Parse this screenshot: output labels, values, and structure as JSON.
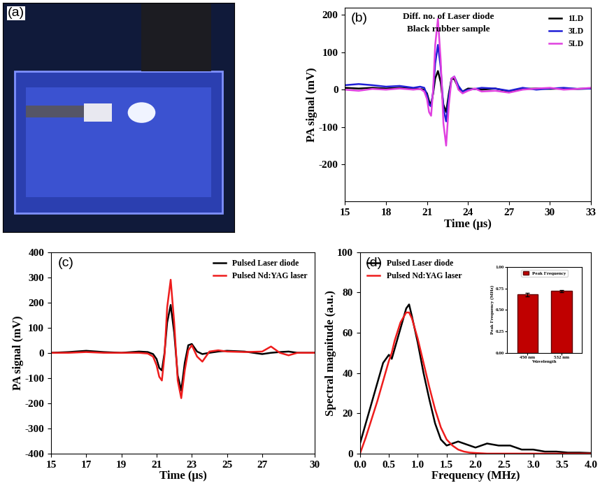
{
  "chart_data": [
    {
      "type": "image",
      "annotations": [
        "(a)"
      ]
    },
    {
      "type": "line",
      "annotations": [
        "(b)",
        "Diff. no. of Laser diode",
        "Black rubber sample"
      ],
      "x_label": "Time (μs)",
      "y_label": "PA signal (mV)",
      "x": [
        15,
        16,
        17,
        18,
        19,
        20,
        20.5,
        20.8,
        21.0,
        21.15,
        21.3,
        21.45,
        21.6,
        21.8,
        22.0,
        22.2,
        22.4,
        22.6,
        22.8,
        23.0,
        23.3,
        23.6,
        24,
        24.5,
        25,
        26,
        27,
        28,
        29,
        30,
        31,
        32,
        33
      ],
      "series": [
        {
          "name": "1LD",
          "color": "#000000",
          "values": [
            5,
            3,
            5,
            3,
            5,
            3,
            2,
            0,
            -10,
            -30,
            -40,
            -10,
            30,
            50,
            20,
            -40,
            -60,
            -10,
            30,
            28,
            5,
            -5,
            3,
            2,
            0,
            3,
            -5,
            2,
            3,
            2,
            3,
            2,
            3
          ]
        },
        {
          "name": "3LD",
          "color": "#1f1fd6",
          "values": [
            12,
            15,
            12,
            8,
            10,
            5,
            8,
            5,
            -15,
            -40,
            -45,
            -5,
            70,
            120,
            60,
            -50,
            -85,
            -20,
            30,
            35,
            10,
            -5,
            0,
            2,
            5,
            3,
            -3,
            5,
            0,
            3,
            5,
            2,
            3
          ]
        },
        {
          "name": "5LD",
          "color": "#e040e0",
          "values": [
            0,
            -3,
            2,
            0,
            3,
            0,
            2,
            -5,
            -25,
            -60,
            -70,
            0,
            120,
            190,
            80,
            -90,
            -150,
            -40,
            30,
            35,
            0,
            -10,
            -3,
            3,
            -5,
            -3,
            -8,
            0,
            3,
            5,
            0,
            2,
            5
          ]
        }
      ],
      "xlim": [
        15,
        33
      ],
      "xticks": [
        15,
        18,
        21,
        24,
        27,
        30,
        33
      ],
      "ylim": [
        -300,
        220
      ],
      "yticks": [
        -200,
        -100,
        0,
        100,
        200
      ],
      "legend": "upper right"
    },
    {
      "type": "line",
      "annotations": [
        "(c)"
      ],
      "x_label": "Time (μs)",
      "y_label": "PA signal (mV)",
      "x": [
        15,
        16,
        17,
        18,
        19,
        20,
        20.5,
        20.8,
        21.0,
        21.15,
        21.3,
        21.45,
        21.6,
        21.8,
        22.0,
        22.2,
        22.4,
        22.6,
        22.8,
        23.0,
        23.3,
        23.6,
        24,
        24.5,
        25,
        26,
        27,
        27.5,
        28,
        28.5,
        29,
        30
      ],
      "series": [
        {
          "name": "Pulsed Laser diode",
          "color": "#000000",
          "values": [
            0,
            3,
            8,
            3,
            0,
            5,
            3,
            -5,
            -25,
            -60,
            -70,
            0,
            120,
            190,
            80,
            -90,
            -150,
            -40,
            30,
            35,
            5,
            -5,
            0,
            5,
            8,
            5,
            -5,
            0,
            3,
            5,
            0,
            0
          ]
        },
        {
          "name": "Pulsed Nd:YAG laser",
          "color": "#ee1c1c",
          "values": [
            0,
            0,
            3,
            0,
            0,
            0,
            -3,
            -15,
            -50,
            -95,
            -110,
            -10,
            180,
            290,
            120,
            -110,
            -180,
            -70,
            10,
            30,
            -15,
            -35,
            5,
            10,
            5,
            3,
            5,
            25,
            0,
            -10,
            0,
            0
          ]
        }
      ],
      "xlim": [
        15,
        30
      ],
      "xticks": [
        15,
        17,
        19,
        21,
        23,
        25,
        27,
        30
      ],
      "ylim": [
        -400,
        400
      ],
      "yticks": [
        -400,
        -300,
        -200,
        -100,
        0,
        100,
        200,
        300,
        400
      ],
      "legend": "upper right"
    },
    {
      "type": "line",
      "annotations": [
        "(d)"
      ],
      "x_label": "Frequency (MHz)",
      "y_label": "Spectral magnitude (a.u.)",
      "x": [
        0,
        0.1,
        0.2,
        0.3,
        0.4,
        0.5,
        0.55,
        0.6,
        0.7,
        0.8,
        0.85,
        0.9,
        1.0,
        1.1,
        1.2,
        1.3,
        1.4,
        1.5,
        1.6,
        1.7,
        1.8,
        1.9,
        2.0,
        2.2,
        2.4,
        2.6,
        2.8,
        3.0,
        3.2,
        3.4,
        3.6,
        3.8,
        4.0
      ],
      "series": [
        {
          "name": "Pulsed Laser diode",
          "color": "#000000",
          "values": [
            5,
            15,
            25,
            35,
            45,
            49,
            47,
            52,
            62,
            72,
            74,
            68,
            55,
            40,
            27,
            15,
            7,
            4,
            5,
            6,
            5,
            4,
            3,
            5,
            4,
            4,
            2,
            2,
            1,
            1,
            0.5,
            0.5,
            0.3
          ]
        },
        {
          "name": "Pulsed Nd:YAG laser",
          "color": "#ee1c1c",
          "values": [
            0,
            8,
            17,
            26,
            36,
            46,
            50,
            56,
            65,
            70,
            70,
            67,
            57,
            45,
            33,
            22,
            13,
            7,
            4,
            2,
            1,
            0.5,
            0.3,
            0,
            0,
            0,
            0,
            0,
            0,
            0,
            0,
            0,
            0
          ]
        }
      ],
      "xlim": [
        0.0,
        4.0
      ],
      "xticks": [
        0.0,
        0.5,
        1.0,
        1.5,
        2.0,
        2.5,
        3.0,
        3.5,
        4.0
      ],
      "ylim": [
        0,
        100
      ],
      "yticks": [
        0,
        20,
        40,
        60,
        80,
        100
      ],
      "legend": "upper left",
      "inset": {
        "type": "bar",
        "x_label": "Wavelength",
        "y_label": "Peak Frequency (MHz)",
        "categories": [
          "450 nm",
          "532 nm"
        ],
        "series": [
          {
            "name": "Peak Frequency",
            "color": "#c00000",
            "values": [
              0.68,
              0.72
            ],
            "errors": [
              0.02,
              0.01
            ]
          }
        ],
        "ylim": [
          0,
          1.0
        ],
        "yticks": [
          {
            "value": 0,
            "label": "0.00"
          },
          {
            "value": 0.25,
            "label": "0.25"
          },
          {
            "value": 0.5,
            "label": "0.50"
          },
          {
            "value": 0.75,
            "label": "0.75"
          },
          {
            "value": 1.0,
            "label": "1.00"
          }
        ],
        "legend": "upper center"
      }
    }
  ]
}
